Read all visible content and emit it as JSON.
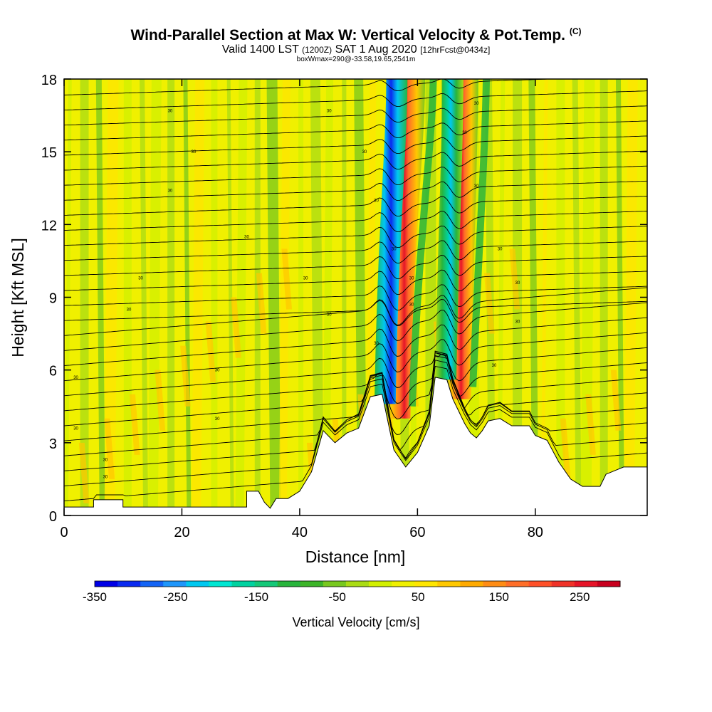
{
  "header": {
    "title_main": "Wind-Parallel Section at Max W: Vertical Velocity & Pot.Temp.",
    "title_copyright": "(C)",
    "valid_a": "Valid 1400 LST",
    "valid_b": "(1200Z)",
    "valid_c": "SAT 1 Aug 2020",
    "valid_d": "[12hrFcst@0434z]",
    "box_info": "boxWmax=290@-33.58,19.65,2541m"
  },
  "chart_data": {
    "type": "heatmap",
    "title": "Wind-Parallel Section at Max W: Vertical Velocity & Pot.Temp.",
    "xlabel": "Distance [nm]",
    "ylabel": "Height [Kft MSL]",
    "xlim": [
      0,
      99
    ],
    "ylim": [
      0,
      18
    ],
    "xticks": [
      0,
      20,
      40,
      60,
      80
    ],
    "yticks": [
      0,
      3,
      6,
      9,
      12,
      15,
      18
    ],
    "colorbar": {
      "title": "Vertical Velocity [cm/s]",
      "labels": [
        -350,
        -250,
        -150,
        -50,
        50,
        150,
        250
      ],
      "min": -350,
      "max": 300,
      "colors": [
        "#0000e6",
        "#0a2af0",
        "#1464f5",
        "#1e96fa",
        "#00c8f0",
        "#00e6d2",
        "#00d2a0",
        "#14c878",
        "#28b43c",
        "#3cb428",
        "#78c81e",
        "#aadc14",
        "#d2f000",
        "#f0f000",
        "#ffe600",
        "#ffc800",
        "#ffaa00",
        "#ff8c14",
        "#ff6e28",
        "#ff5028",
        "#f03228",
        "#e61428",
        "#c8001e"
      ]
    },
    "terrain_profile": [
      {
        "x": 0,
        "h": 0.35
      },
      {
        "x": 5,
        "h": 0.35
      },
      {
        "x": 5,
        "h": 0.65
      },
      {
        "x": 10,
        "h": 0.65
      },
      {
        "x": 10,
        "h": 0.35
      },
      {
        "x": 31,
        "h": 0.35
      },
      {
        "x": 31,
        "h": 1.0
      },
      {
        "x": 33,
        "h": 1.0
      },
      {
        "x": 34,
        "h": 0.55
      },
      {
        "x": 35,
        "h": 0.3
      },
      {
        "x": 36,
        "h": 0.7
      },
      {
        "x": 38,
        "h": 0.7
      },
      {
        "x": 40,
        "h": 1.0
      },
      {
        "x": 42,
        "h": 1.8
      },
      {
        "x": 44,
        "h": 3.5
      },
      {
        "x": 46,
        "h": 3.0
      },
      {
        "x": 48,
        "h": 3.4
      },
      {
        "x": 50,
        "h": 3.6
      },
      {
        "x": 52,
        "h": 4.9
      },
      {
        "x": 54,
        "h": 5.0
      },
      {
        "x": 56,
        "h": 2.7
      },
      {
        "x": 58,
        "h": 2.0
      },
      {
        "x": 60,
        "h": 2.6
      },
      {
        "x": 62,
        "h": 3.7
      },
      {
        "x": 63,
        "h": 5.7
      },
      {
        "x": 65,
        "h": 5.6
      },
      {
        "x": 66,
        "h": 4.8
      },
      {
        "x": 68,
        "h": 3.8
      },
      {
        "x": 69,
        "h": 3.4
      },
      {
        "x": 70,
        "h": 3.2
      },
      {
        "x": 71,
        "h": 3.5
      },
      {
        "x": 72,
        "h": 3.9
      },
      {
        "x": 74,
        "h": 4.0
      },
      {
        "x": 76,
        "h": 3.7
      },
      {
        "x": 79,
        "h": 3.7
      },
      {
        "x": 80,
        "h": 3.3
      },
      {
        "x": 82,
        "h": 3.1
      },
      {
        "x": 84,
        "h": 2.2
      },
      {
        "x": 86,
        "h": 1.5
      },
      {
        "x": 88,
        "h": 1.2
      },
      {
        "x": 91,
        "h": 1.2
      },
      {
        "x": 92,
        "h": 1.7
      },
      {
        "x": 95,
        "h": 2.0
      },
      {
        "x": 99,
        "h": 2.0
      }
    ],
    "updraft_bands": [
      {
        "name": "updraft-1",
        "x_base": 56.5,
        "h_base": 4.0,
        "x_top": 59,
        "wmax": 250
      },
      {
        "name": "downdraft-1",
        "x_base": 54.5,
        "h_base": 4.6,
        "x_top": 56.5,
        "wmax": -350
      },
      {
        "name": "updraft-2",
        "x_base": 66.8,
        "h_base": 4.8,
        "x_top": 68,
        "wmax": 290
      },
      {
        "name": "downdraft-2",
        "x_base": 64.8,
        "h_base": 5.6,
        "x_top": 66,
        "wmax": -150
      }
    ],
    "isentrope_label": "30"
  }
}
